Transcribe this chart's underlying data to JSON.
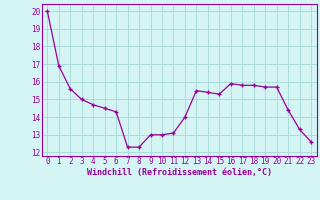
{
  "x": [
    0,
    1,
    2,
    3,
    4,
    5,
    6,
    7,
    8,
    9,
    10,
    11,
    12,
    13,
    14,
    15,
    16,
    17,
    18,
    19,
    20,
    21,
    22,
    23
  ],
  "y": [
    20.0,
    16.9,
    15.6,
    15.0,
    14.7,
    14.5,
    14.3,
    12.3,
    12.3,
    13.0,
    13.0,
    13.1,
    14.0,
    15.5,
    15.4,
    15.3,
    15.9,
    15.8,
    15.8,
    15.7,
    15.7,
    14.4,
    13.3,
    12.6
  ],
  "xlabel": "Windchill (Refroidissement éolien,°C)",
  "xlim": [
    -0.5,
    23.5
  ],
  "ylim": [
    11.8,
    20.4
  ],
  "yticks": [
    12,
    13,
    14,
    15,
    16,
    17,
    18,
    19,
    20
  ],
  "xticks": [
    0,
    1,
    2,
    3,
    4,
    5,
    6,
    7,
    8,
    9,
    10,
    11,
    12,
    13,
    14,
    15,
    16,
    17,
    18,
    19,
    20,
    21,
    22,
    23
  ],
  "line_color": "#990099",
  "marker": "+",
  "bg_color": "#d5f5f5",
  "grid_color": "#aadddd",
  "tick_color": "#990099",
  "label_color": "#990099",
  "tick_fontsize": 5.5,
  "xlabel_fontsize": 6.0
}
